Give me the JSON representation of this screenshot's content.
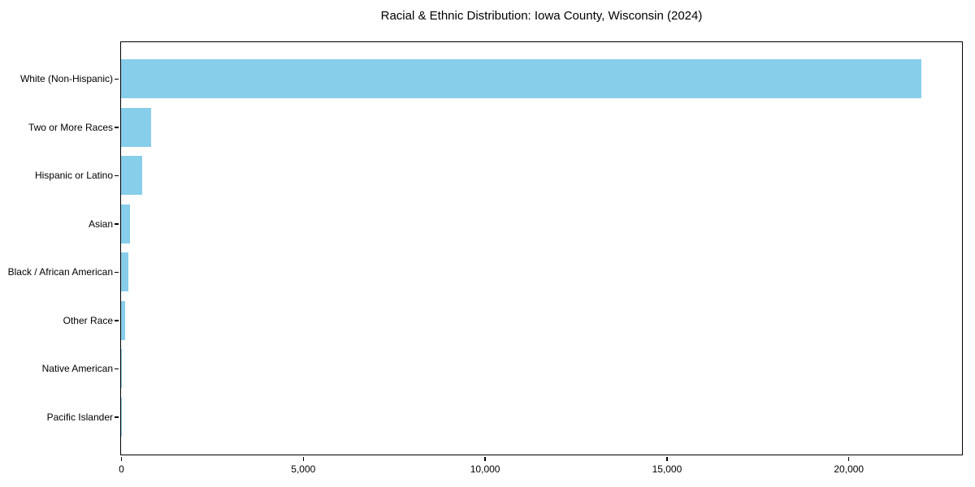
{
  "chart_data": {
    "type": "bar",
    "orientation": "horizontal",
    "title": "Racial & Ethnic Distribution: Iowa County, Wisconsin (2024)",
    "xlabel": "",
    "ylabel": "",
    "categories": [
      "White (Non-Hispanic)",
      "Two or More Races",
      "Hispanic or Latino",
      "Asian",
      "Black / African American",
      "Other Race",
      "Native American",
      "Pacific Islander"
    ],
    "values": [
      22000,
      820,
      580,
      240,
      210,
      120,
      30,
      10
    ],
    "xlim": [
      0,
      23100
    ],
    "x_ticks": [
      0,
      5000,
      10000,
      15000,
      20000
    ],
    "x_tick_labels": [
      "0",
      "5,000",
      "10,000",
      "15,000",
      "20,000"
    ],
    "grid": false,
    "legend": "none",
    "bar_color": "#87CEEB",
    "axis_color": "#000000",
    "background_color": "#FFFFFF"
  }
}
